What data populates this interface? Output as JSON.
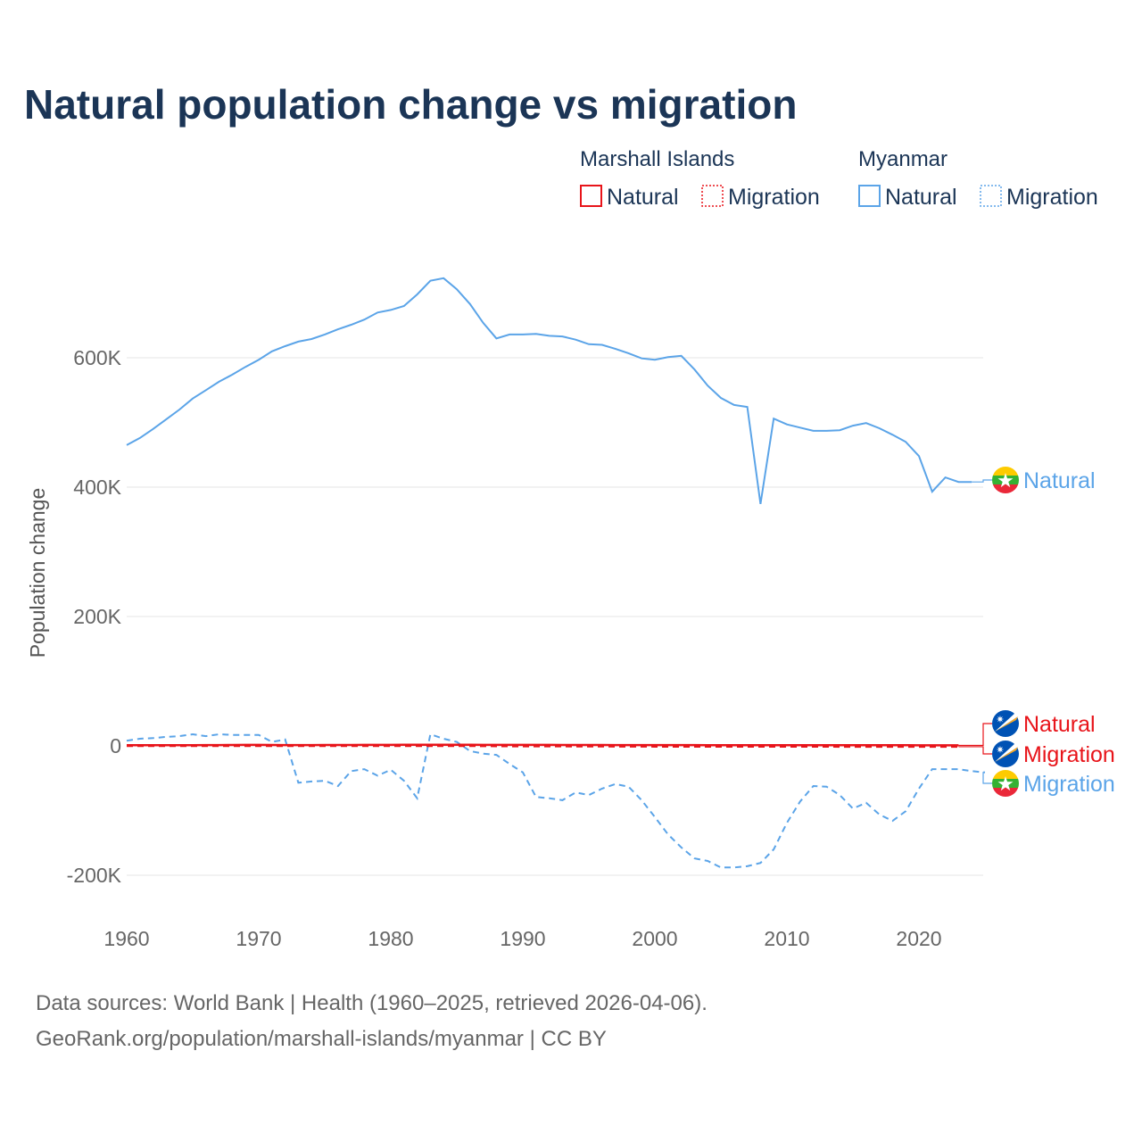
{
  "chart_data": {
    "type": "line",
    "title": "Natural population change vs migration",
    "ylabel": "Population change",
    "xlabel": "",
    "ylim": [
      -230000,
      760000
    ],
    "xlim": [
      1960,
      2025
    ],
    "y_ticks": [
      {
        "v": -200000,
        "label": "-200K"
      },
      {
        "v": 0,
        "label": "0"
      },
      {
        "v": 200000,
        "label": "200K"
      },
      {
        "v": 400000,
        "label": "400K"
      },
      {
        "v": 600000,
        "label": "600K"
      }
    ],
    "x_ticks": [
      1960,
      1970,
      1980,
      1990,
      2000,
      2010,
      2020
    ],
    "grid": true,
    "legend_groups": [
      {
        "title": "Marshall Islands",
        "items": [
          "Natural",
          "Migration"
        ]
      },
      {
        "title": "Myanmar",
        "items": [
          "Natural",
          "Migration"
        ]
      }
    ],
    "legend_placement": "top-right",
    "series": [
      {
        "name": "Myanmar Natural",
        "country": "Myanmar",
        "label": "Natural",
        "color": "#5ba4e8",
        "dash": false,
        "x_start": 1960,
        "values": [
          465000,
          476000,
          490000,
          505000,
          520000,
          537000,
          550000,
          563000,
          574000,
          586000,
          597000,
          610000,
          618000,
          625000,
          629000,
          636000,
          644000,
          651000,
          659000,
          670000,
          674000,
          680000,
          698000,
          719000,
          723000,
          706000,
          683000,
          654000,
          630000,
          636000,
          636000,
          637000,
          634000,
          633000,
          628000,
          621000,
          620000,
          614000,
          607000,
          599000,
          597000,
          601000,
          603000,
          582000,
          557000,
          538000,
          527000,
          524000,
          374000,
          506000,
          497000,
          492000,
          487000,
          487000,
          488000,
          495000,
          499000,
          491000,
          481000,
          470000,
          448000,
          393000,
          415000,
          408000,
          408000
        ]
      },
      {
        "name": "Myanmar Migration",
        "country": "Myanmar",
        "label": "Migration",
        "color": "#5ba4e8",
        "dash": true,
        "x_start": 1960,
        "values": [
          8000,
          11000,
          12000,
          14000,
          15000,
          18000,
          15000,
          18000,
          17000,
          17000,
          17000,
          6000,
          10000,
          -57000,
          -55000,
          -54000,
          -62000,
          -39000,
          -36000,
          -46000,
          -37000,
          -54000,
          -81000,
          18000,
          11000,
          6000,
          -8000,
          -12000,
          -14000,
          -28000,
          -41000,
          -79000,
          -81000,
          -84000,
          -72000,
          -76000,
          -66000,
          -59000,
          -63000,
          -84000,
          -110000,
          -137000,
          -157000,
          -174000,
          -178000,
          -188000,
          -188000,
          -186000,
          -181000,
          -160000,
          -119000,
          -86000,
          -62000,
          -63000,
          -76000,
          -97000,
          -88000,
          -106000,
          -116000,
          -101000,
          -66000,
          -36000,
          -36000,
          -36000,
          -39000,
          -41000
        ]
      },
      {
        "name": "Marshall Islands Natural",
        "country": "Marshall Islands",
        "label": "Natural",
        "color": "#e8141a",
        "dash": false,
        "x_start": 1960,
        "values": [
          1000,
          1000,
          1000,
          1100,
          1100,
          1100,
          1200,
          1300,
          1400,
          1500,
          1500,
          1400,
          1300,
          1300,
          1300,
          1400,
          1400,
          1400,
          1500,
          1500,
          1500,
          1600,
          1600,
          1600,
          1600,
          1600,
          1600,
          1500,
          1500,
          1500,
          1500,
          1500,
          1500,
          1400,
          1400,
          1400,
          1400,
          1300,
          1300,
          1300,
          1300,
          1200,
          1200,
          1200,
          1100,
          1100,
          1100,
          1100,
          1000,
          1000,
          1000,
          1000,
          1000,
          900,
          900,
          900,
          900,
          900,
          900,
          900,
          800,
          800,
          800,
          800
        ]
      },
      {
        "name": "Marshall Islands Migration",
        "country": "Marshall Islands",
        "label": "Migration",
        "color": "#e8141a",
        "dash": true,
        "x_start": 1960,
        "values": [
          0,
          0,
          0,
          0,
          0,
          0,
          0,
          0,
          0,
          0,
          0,
          0,
          0,
          0,
          0,
          0,
          0,
          0,
          0,
          0,
          0,
          0,
          0,
          0,
          0,
          0,
          0,
          -200,
          -300,
          -400,
          -500,
          -500,
          -600,
          -600,
          -700,
          -700,
          -700,
          -800,
          -800,
          -800,
          -900,
          -900,
          -900,
          -900,
          -900,
          -900,
          -1000,
          -1000,
          -1000,
          -1000,
          -1000,
          -1000,
          -1000,
          -1000,
          -1200,
          -1200,
          -1300,
          -1300,
          -1300,
          -1300,
          -1300,
          -1300,
          -1300,
          -1300
        ]
      }
    ]
  },
  "footer": {
    "line1": "Data sources: World Bank | Health (1960–2025, retrieved 2026-04-06).",
    "line2": "GeoRank.org/population/marshall-islands/myanmar | CC BY"
  }
}
